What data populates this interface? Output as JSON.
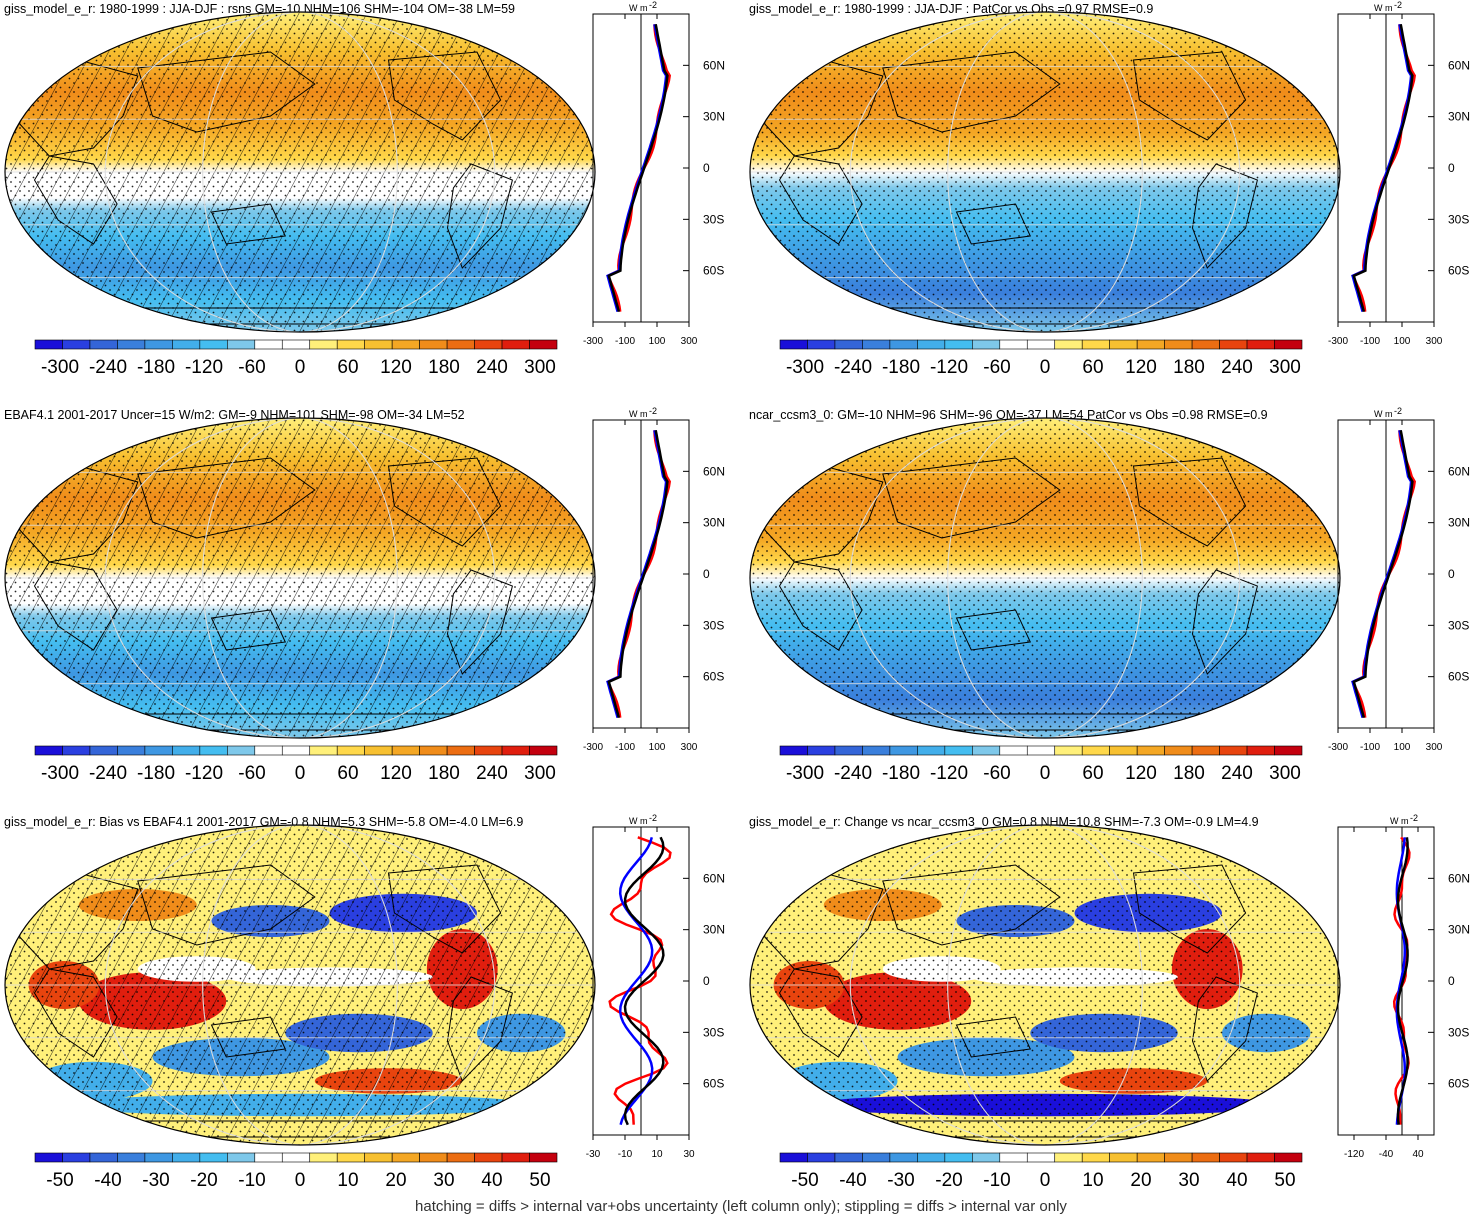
{
  "colors": {
    "palette": [
      "#1a0fd9",
      "#2a3fe0",
      "#3465d8",
      "#3a7fdc",
      "#3e97e2",
      "#42aeea",
      "#44bdf0",
      "#7ec8ea",
      "#ffffff",
      "#ffffff",
      "#fff07a",
      "#ffd84a",
      "#f7c030",
      "#f4a724",
      "#f08c1a",
      "#ec6d12",
      "#e8440e",
      "#e01e0e",
      "#c4000e"
    ],
    "obs_line": "#ff0000",
    "model_line": "#0000ff",
    "black_line": "#000000"
  },
  "panels": [
    {
      "title": "giss_model_e_r: 1980-1999 : JJA-DJF : rsns GM=-10 NHM=106 SHM=-104 OM=-38 LM=59",
      "type": "clim",
      "hatching": true,
      "colorbar_labels": [
        "-300",
        "-240",
        "-180",
        "-120",
        "-60",
        "0",
        "60",
        "120",
        "180",
        "240",
        "300"
      ],
      "profile_ticks": [
        "-300",
        "-100",
        "100",
        "300"
      ],
      "profile_range": [
        -300,
        300
      ]
    },
    {
      "title": "giss_model_e_r: 1980-1999 : JJA-DJF : PatCor vs Obs =0.97 RMSE=0.9",
      "type": "clim",
      "hatching": false,
      "colorbar_labels": [
        "-300",
        "-240",
        "-180",
        "-120",
        "-60",
        "0",
        "60",
        "120",
        "180",
        "240",
        "300"
      ],
      "profile_ticks": [
        "-300",
        "-100",
        "100",
        "300"
      ],
      "profile_range": [
        -300,
        300
      ]
    },
    {
      "title": "EBAF4.1 2001-2017 Uncer=15 W/m2: GM=-9 NHM=101 SHM=-98 OM=-34 LM=52",
      "type": "clim",
      "hatching": true,
      "colorbar_labels": [
        "-300",
        "-240",
        "-180",
        "-120",
        "-60",
        "0",
        "60",
        "120",
        "180",
        "240",
        "300"
      ],
      "profile_ticks": [
        "-300",
        "-100",
        "100",
        "300"
      ],
      "profile_range": [
        -300,
        300
      ]
    },
    {
      "title": "ncar_ccsm3_0: GM=-10 NHM=96 SHM=-96 OM=-37 LM=54 PatCor vs Obs =0.98 RMSE=0.9",
      "type": "clim",
      "hatching": false,
      "colorbar_labels": [
        "-300",
        "-240",
        "-180",
        "-120",
        "-60",
        "0",
        "60",
        "120",
        "180",
        "240",
        "300"
      ],
      "profile_ticks": [
        "-300",
        "-100",
        "100",
        "300"
      ],
      "profile_range": [
        -300,
        300
      ]
    },
    {
      "title": "giss_model_e_r: Bias vs EBAF4.1 2001-2017 GM=-0.8 NHM=5.3 SHM=-5.8 OM=-4.0 LM=6.9",
      "type": "diff",
      "hatching": true,
      "colorbar_labels": [
        "-50",
        "-40",
        "-30",
        "-20",
        "-10",
        "0",
        "10",
        "20",
        "30",
        "40",
        "50"
      ],
      "profile_ticks": [
        "-30",
        "-10",
        "10",
        "30"
      ],
      "profile_range": [
        -30,
        30
      ]
    },
    {
      "title": "giss_model_e_r: Change vs ncar_ccsm3_0 GM=0.8 NHM=10.8 SHM=-7.3 OM=-0.9 LM=4.9",
      "type": "diff",
      "hatching": false,
      "colorbar_labels": [
        "-50",
        "-40",
        "-30",
        "-20",
        "-10",
        "0",
        "10",
        "20",
        "30",
        "40",
        "50"
      ],
      "profile_ticks": [
        "-120",
        "-40",
        "40"
      ],
      "profile_range": [
        -160,
        80
      ]
    }
  ],
  "lat_labels": [
    "60N",
    "30N",
    "0",
    "30S",
    "60S"
  ],
  "profile_unit": "W m",
  "profile_unit_exp": "-2",
  "footnote": "hatching = diffs > internal var+obs uncertainty (left column only); stippling = diffs > internal var only"
}
